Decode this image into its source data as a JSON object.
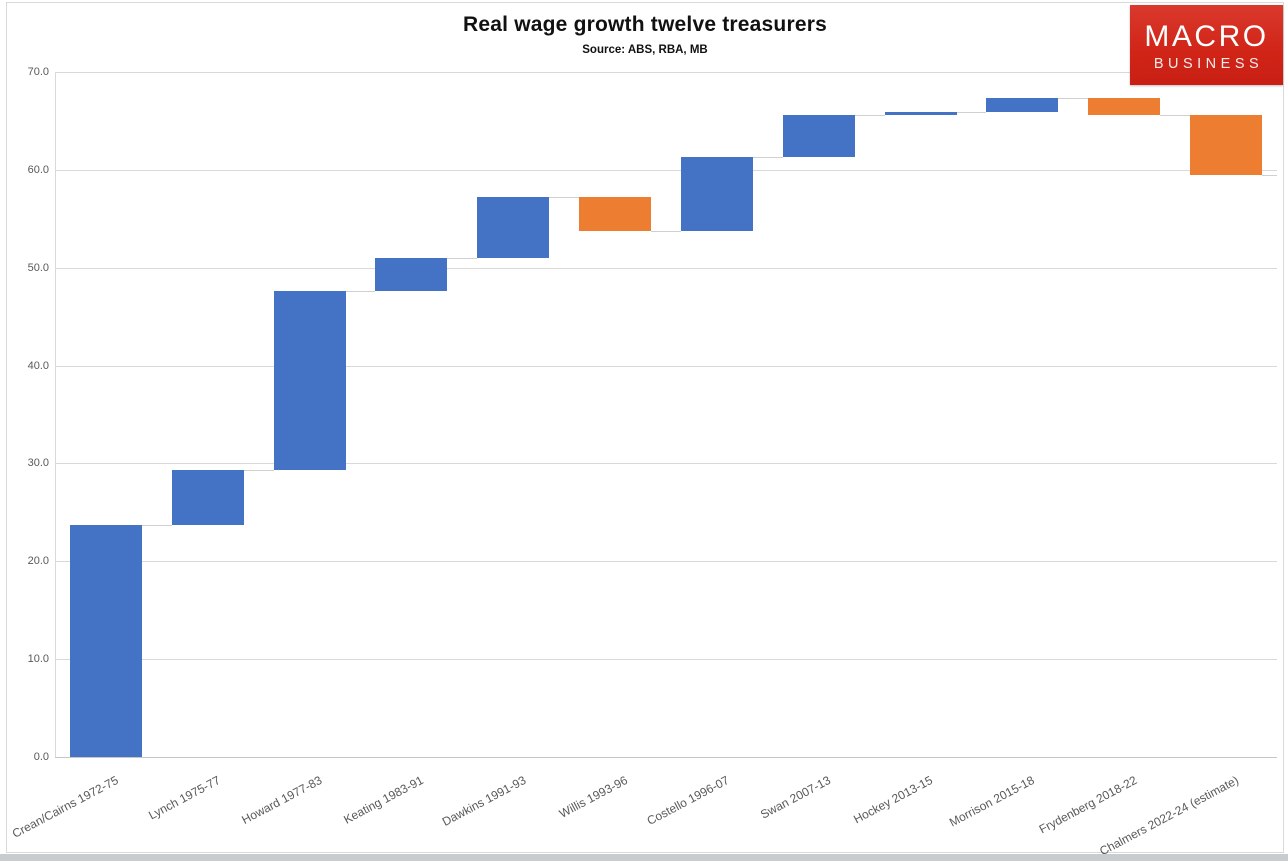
{
  "header": {
    "title": "Real wage growth twelve treasurers",
    "subtitle": "Source: ABS, RBA, MB"
  },
  "logo": {
    "line1": "MACRO",
    "line2": "BUSINESS",
    "background": "#d02417"
  },
  "chart_data": {
    "type": "bar",
    "subtype": "waterfall",
    "title": "Real wage growth twelve treasurers",
    "subtitle": "Source: ABS, RBA, MB",
    "categories": [
      "Crean/Cairns 1972-75",
      "Lynch 1975-77",
      "Howard 1977-83",
      "Keating 1983-91",
      "Dawkins 1991-93",
      "Willis 1993-96",
      "Costello 1996-07",
      "Swan 2007-13",
      "Hockey 2013-15",
      "Morrison 2015-18",
      "Frydenberg 2018-22",
      "Chalmers 2022-24 (estimate)"
    ],
    "steps": [
      {
        "label": "Crean/Cairns 1972-75",
        "start": 0,
        "end": 23.7,
        "change": 23.7,
        "direction": "increase"
      },
      {
        "label": "Lynch 1975-77",
        "start": 23.7,
        "end": 29.3,
        "change": 5.6,
        "direction": "increase"
      },
      {
        "label": "Howard 1977-83",
        "start": 29.3,
        "end": 47.6,
        "change": 18.3,
        "direction": "increase"
      },
      {
        "label": "Keating 1983-91",
        "start": 47.6,
        "end": 51.0,
        "change": 3.4,
        "direction": "increase"
      },
      {
        "label": "Dawkins 1991-93",
        "start": 51.0,
        "end": 57.2,
        "change": 6.2,
        "direction": "increase"
      },
      {
        "label": "Willis 1993-96",
        "start": 57.2,
        "end": 53.8,
        "change": -3.4,
        "direction": "decrease"
      },
      {
        "label": "Costello 1996-07",
        "start": 53.8,
        "end": 61.3,
        "change": 7.5,
        "direction": "increase"
      },
      {
        "label": "Swan 2007-13",
        "start": 61.3,
        "end": 65.6,
        "change": 4.3,
        "direction": "increase"
      },
      {
        "label": "Hockey 2013-15",
        "start": 65.6,
        "end": 65.9,
        "change": 0.3,
        "direction": "increase"
      },
      {
        "label": "Morrison 2015-18",
        "start": 65.9,
        "end": 67.3,
        "change": 1.4,
        "direction": "increase"
      },
      {
        "label": "Frydenberg 2018-22",
        "start": 67.3,
        "end": 65.6,
        "change": -1.7,
        "direction": "decrease"
      },
      {
        "label": "Chalmers 2022-24 (estimate)",
        "start": 65.6,
        "end": 59.5,
        "change": -6.1,
        "direction": "decrease"
      }
    ],
    "colors": {
      "increase": "#4472C4",
      "decrease": "#ED7D31"
    },
    "ylim": [
      0,
      70
    ],
    "ytick_step": 10,
    "yticks": [
      "0.0",
      "10.0",
      "20.0",
      "30.0",
      "40.0",
      "50.0",
      "60.0",
      "70.0"
    ],
    "grid": true,
    "gridline_color": "#d9d9d9",
    "connector_color": "#d0d0d0",
    "tick_label_color": "#595959",
    "legend": "none"
  }
}
